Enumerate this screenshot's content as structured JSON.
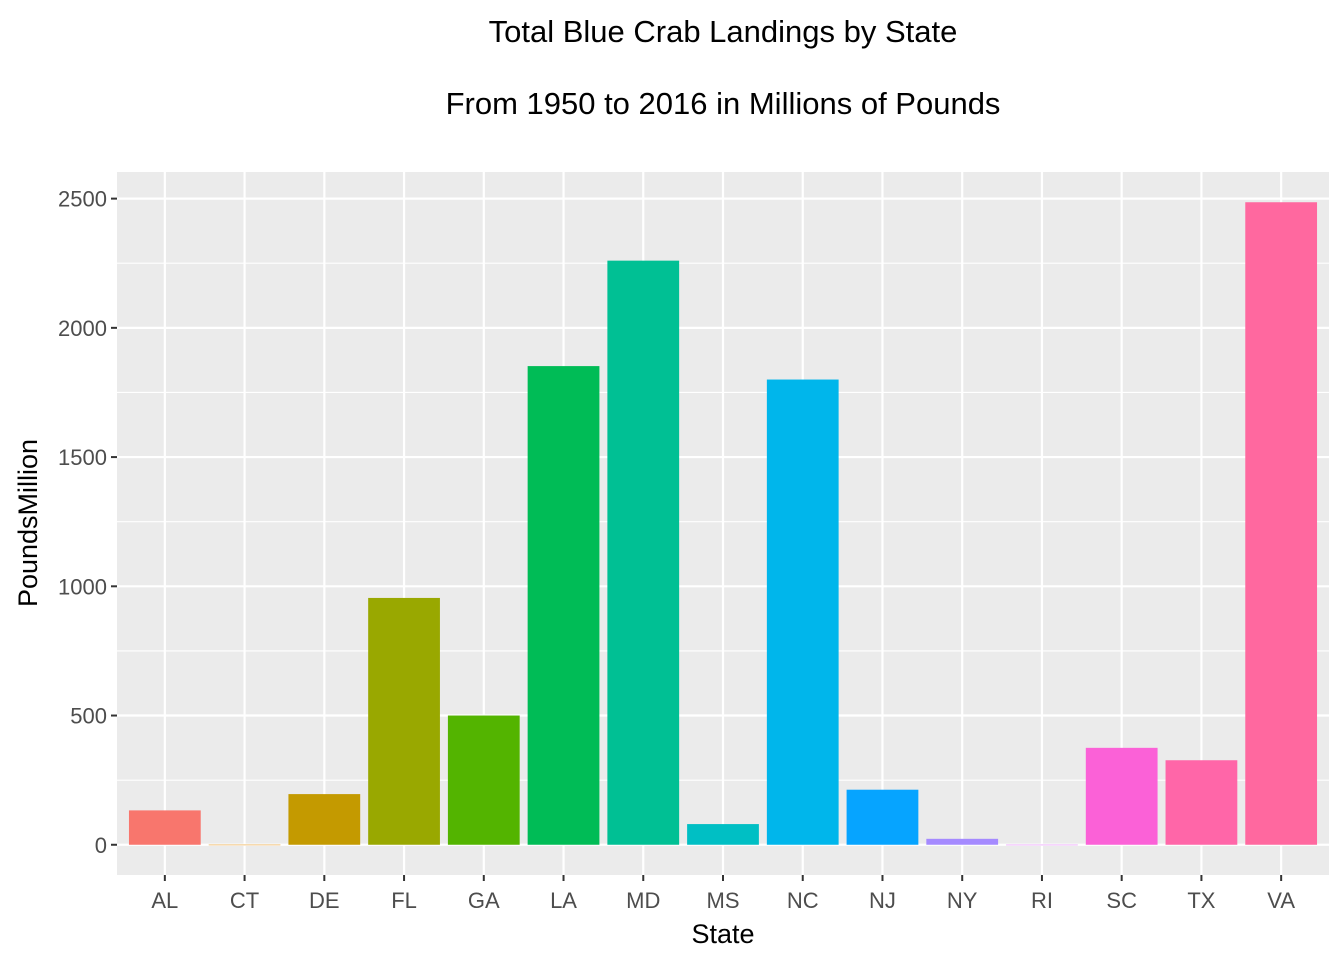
{
  "chart_data": {
    "type": "bar",
    "title": "Total Blue Crab Landings by State",
    "subtitle": "From 1950 to 2016 in Millions of Pounds",
    "xlabel": "State",
    "ylabel": "PoundsMillion",
    "categories": [
      "AL",
      "CT",
      "DE",
      "FL",
      "GA",
      "LA",
      "MD",
      "MS",
      "NC",
      "NJ",
      "NY",
      "RI",
      "SC",
      "TX",
      "VA"
    ],
    "values": [
      133,
      0.3,
      196,
      955,
      500,
      1852,
      2260,
      80,
      1800,
      213,
      23,
      0.2,
      375,
      327,
      2486
    ],
    "colors": [
      "#F8766D",
      "#E38900",
      "#C49A00",
      "#99A800",
      "#53B400",
      "#00BC56",
      "#00C094",
      "#00BFC4",
      "#00B6EB",
      "#06A4FF",
      "#A58AFF",
      "#DF70F8",
      "#FB61D7",
      "#FF66A8",
      "#FF689F"
    ],
    "ylim": [
      -117,
      2603
    ],
    "yticks": [
      0,
      500,
      1000,
      1500,
      2000,
      2500
    ],
    "grid": true,
    "legend": "none",
    "panel_background": "#EBEBEB",
    "grid_color": "#FFFFFF"
  }
}
